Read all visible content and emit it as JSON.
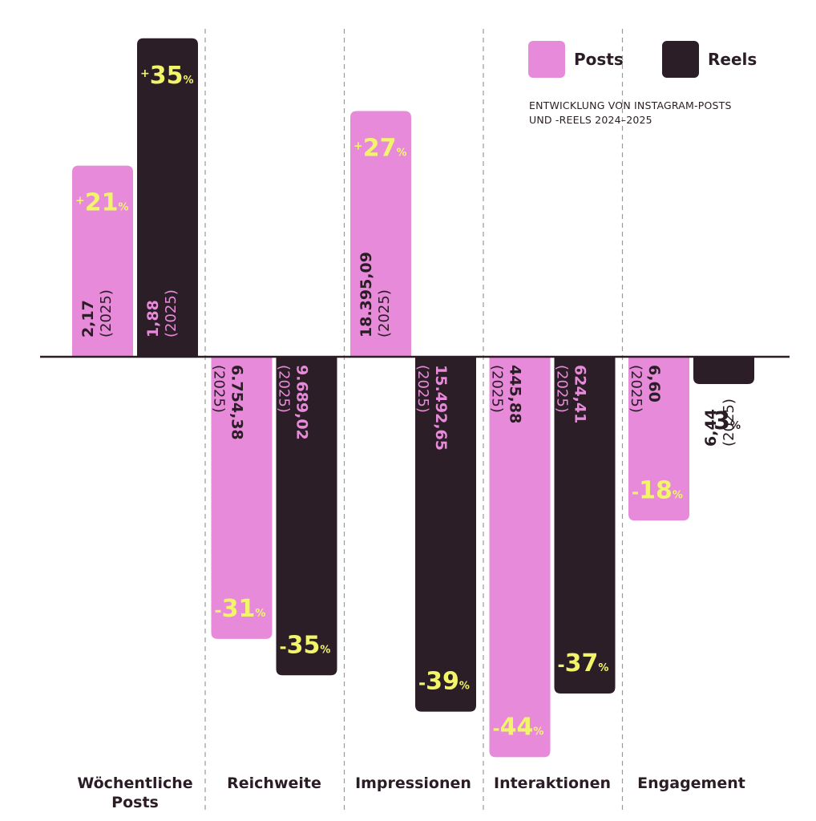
{
  "chart_data": {
    "type": "bar",
    "subtitle_lines": [
      "ENTWICKLUNG VON INSTAGRAM-POSTS",
      "UND -REELS 2024–2025"
    ],
    "categories": [
      [
        "Wöchentliche",
        "Posts"
      ],
      [
        "Reichweite"
      ],
      [
        "Impressionen"
      ],
      [
        "Interaktionen"
      ],
      [
        "Engagement"
      ]
    ],
    "unit": "%",
    "year_label": "(2025)",
    "series": [
      {
        "name": "Posts",
        "color": "#e68ad9",
        "values": [
          21,
          -31,
          27,
          -44,
          -18
        ],
        "value_labels": [
          "+21",
          "-31",
          "+27",
          "-44",
          "-18"
        ],
        "values_2025": [
          "2,17",
          "6.754,38",
          "18.395,09",
          "445,88",
          "6,60"
        ]
      },
      {
        "name": "Reels",
        "color": "#2b1e26",
        "values": [
          35,
          -35,
          -39,
          -37,
          -3
        ],
        "value_labels": [
          "+35",
          "-35",
          "-39",
          "-37",
          "-3"
        ],
        "values_2025": [
          "1,88",
          "9.689,02",
          "15.492,65",
          "624,41",
          "6,44"
        ]
      }
    ],
    "ylim": [
      -44,
      35
    ],
    "grid": false,
    "legend": "top-right",
    "highlight_color": "#f2f56a"
  }
}
